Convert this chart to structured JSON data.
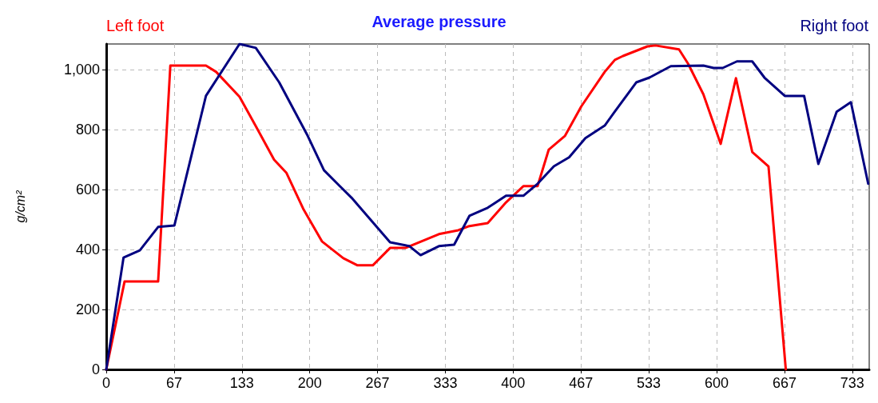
{
  "chart_data": {
    "type": "line",
    "title": "Average pressure",
    "ylabel": "g/cm²",
    "xlim": [
      0,
      750
    ],
    "xticks": [
      0,
      {
        "value": 66.67,
        "label": "67"
      },
      {
        "value": 133.33,
        "label": "133"
      },
      200,
      {
        "value": 266.67,
        "label": "267"
      },
      {
        "value": 333.33,
        "label": "333"
      },
      400,
      {
        "value": 466.67,
        "label": "467"
      },
      {
        "value": 533.33,
        "label": "533"
      },
      600,
      {
        "value": 666.67,
        "label": "667"
      },
      {
        "value": 733.33,
        "label": "733"
      }
    ],
    "ylim": [
      0,
      1085
    ],
    "yticks": [
      0,
      200,
      400,
      600,
      800,
      {
        "value": 1000,
        "label": "1,000"
      }
    ],
    "grid": true,
    "legend": "top",
    "marker": "none",
    "line_style": "solid",
    "series": [
      {
        "name": "Left foot",
        "color": "#ff0000",
        "x": [
          0,
          18,
          51,
          63,
          98,
          108,
          131,
          147,
          165,
          177,
          194,
          212,
          233,
          247,
          262,
          279,
          294,
          327,
          346,
          356,
          375,
          393,
          410,
          424,
          435,
          451,
          467,
          490,
          500,
          508,
          532,
          540,
          563,
          572,
          587,
          604,
          619,
          635,
          651,
          668
        ],
        "values": [
          0,
          293,
          293,
          1013,
          1013,
          992,
          909,
          811,
          699,
          656,
          533,
          427,
          371,
          347,
          347,
          405,
          405,
          451,
          464,
          477,
          488,
          557,
          611,
          611,
          733,
          779,
          877,
          992,
          1032,
          1045,
          1077,
          1080,
          1067,
          1019,
          917,
          752,
          971,
          725,
          677,
          0
        ]
      },
      {
        "name": "Right foot",
        "color": "#000080",
        "x": [
          0,
          17,
          33,
          51,
          67,
          98,
          131,
          147,
          170,
          198,
          214,
          229,
          241,
          279,
          298,
          309,
          327,
          342,
          357,
          375,
          393,
          410,
          424,
          440,
          455,
          471,
          490,
          500,
          521,
          534,
          555,
          587,
          597,
          606,
          620,
          635,
          647,
          667,
          686,
          700,
          718,
          732,
          749
        ],
        "values": [
          0,
          373,
          397,
          475,
          480,
          912,
          1085,
          1072,
          957,
          779,
          664,
          613,
          573,
          424,
          411,
          381,
          411,
          416,
          512,
          539,
          579,
          579,
          619,
          677,
          707,
          771,
          813,
          860,
          957,
          973,
          1011,
          1013,
          1005,
          1005,
          1027,
          1027,
          973,
          912,
          912,
          685,
          859,
          891,
          619
        ]
      }
    ]
  }
}
